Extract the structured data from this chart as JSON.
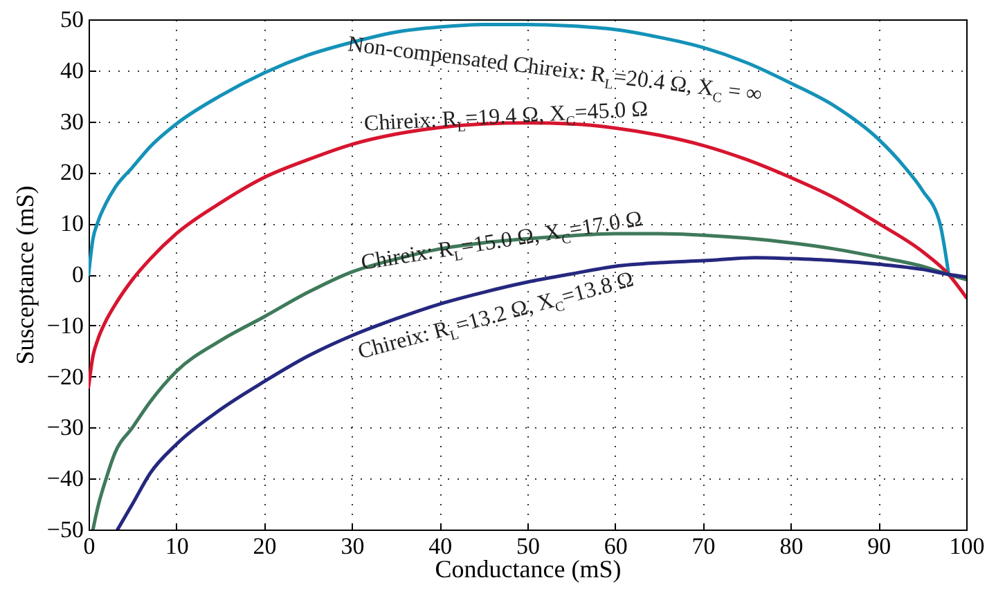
{
  "chart_data": {
    "type": "line",
    "xlabel": "Conductance (mS)",
    "ylabel": "Susceptance (mS)",
    "xlim": [
      0,
      100
    ],
    "ylim": [
      -50,
      50
    ],
    "xticks": [
      0,
      10,
      20,
      30,
      40,
      50,
      60,
      70,
      80,
      90,
      100
    ],
    "yticks": [
      -50,
      -40,
      -30,
      -20,
      -10,
      0,
      10,
      20,
      30,
      40,
      50
    ],
    "grid": true,
    "line_style": "solid",
    "series": [
      {
        "name": "Non-compensated Chireix: R$_{L}$=20.4 Ω, X$_{C}$ = ∞",
        "color": "#1592b8",
        "x": [
          0,
          0.5,
          1,
          2,
          3,
          5,
          7,
          10,
          15,
          20,
          25,
          30,
          35,
          40,
          45,
          50,
          55,
          60,
          65,
          70,
          75,
          80,
          85,
          90,
          93,
          95,
          97,
          98
        ],
        "values": [
          0,
          7,
          10,
          14,
          17,
          21,
          25,
          29.5,
          35,
          39.5,
          43,
          45.5,
          47.5,
          48.5,
          49,
          49,
          48.7,
          48,
          46.5,
          44.5,
          41.5,
          37.5,
          33,
          26.5,
          21,
          16.5,
          10,
          0
        ]
      },
      {
        "name": "Chireix: R$_{L}$=19.4 Ω, X$_{C}$=45.0 Ω",
        "color": "#d7152f",
        "x": [
          0,
          0.5,
          1,
          2,
          3,
          5,
          7,
          10,
          15,
          20,
          25,
          30,
          35,
          40,
          45,
          50,
          55,
          60,
          65,
          70,
          75,
          80,
          85,
          90,
          95,
          98,
          100
        ],
        "values": [
          -22,
          -16,
          -13,
          -9,
          -6,
          -1,
          3,
          8,
          14,
          19,
          22.5,
          25.5,
          27.5,
          28.8,
          29.5,
          29.7,
          29.5,
          28.7,
          27.3,
          25.3,
          22.5,
          19,
          15,
          10,
          4.5,
          0,
          -4.5
        ]
      },
      {
        "name": "Chireix: R$_{L}$=15.0 Ω, X$_{C}$=17.0 Ω",
        "color": "#3f7a5a",
        "x": [
          0.5,
          1,
          2,
          3,
          5,
          7,
          10,
          15,
          20,
          25,
          30,
          35,
          40,
          45,
          50,
          55,
          60,
          65,
          70,
          75,
          80,
          85,
          90,
          95,
          98,
          100
        ],
        "values": [
          -50,
          -46,
          -40,
          -35,
          -30,
          -25,
          -19,
          -13,
          -8.3,
          -3.5,
          0.5,
          3,
          5,
          6.2,
          7,
          7.6,
          8,
          8,
          7.7,
          7.1,
          6.2,
          5,
          3.4,
          1.6,
          0,
          -1
        ]
      },
      {
        "name": "Chireix: R$_{L}$=13.2 Ω, X$_{C}$=13.8 Ω",
        "color": "#25287f",
        "x": [
          3.3,
          5,
          7,
          10,
          15,
          20,
          25,
          30,
          35,
          40,
          45,
          50,
          55,
          60,
          65,
          70,
          76,
          80,
          85,
          90,
          95,
          98,
          100
        ],
        "values": [
          -50,
          -45,
          -39,
          -33.3,
          -26.5,
          -21,
          -16,
          -12,
          -8.7,
          -5.8,
          -3.5,
          -1.5,
          0.1,
          1.6,
          2.3,
          2.7,
          3.3,
          3.1,
          2.7,
          2,
          1,
          0,
          -0.5
        ]
      }
    ]
  }
}
